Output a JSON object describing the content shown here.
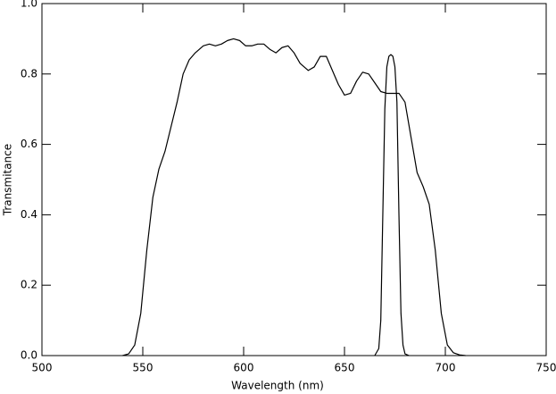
{
  "chart_data": {
    "type": "line",
    "x_label": "Wavelength (nm)",
    "y_label": "Transmitance",
    "xlim": [
      500,
      750
    ],
    "xticks": [
      500,
      550,
      600,
      650,
      700,
      750
    ],
    "ylim": [
      0,
      1
    ],
    "yticks": [
      {
        "value": 0,
        "label": "0.0"
      },
      {
        "value": 0.2,
        "label": "0.2"
      },
      {
        "value": 0.4,
        "label": "0.4"
      },
      {
        "value": 0.6,
        "label": "0.6"
      },
      {
        "value": 0.8,
        "label": "0.8"
      },
      {
        "value": 1,
        "label": "1.0"
      }
    ],
    "series": [
      {
        "color": "#000000",
        "x": [
          540,
          543,
          546,
          549,
          552,
          555,
          558,
          561,
          564,
          567,
          570,
          573,
          576,
          580,
          583,
          586,
          589,
          592,
          595,
          598,
          601,
          604,
          607,
          610,
          613,
          616,
          619,
          622,
          625,
          628,
          632,
          635,
          638,
          641,
          644,
          647,
          650,
          653,
          656,
          659,
          662,
          665,
          668,
          671,
          674,
          677,
          680,
          683,
          686,
          689,
          692,
          695,
          698,
          701,
          704,
          707,
          710
        ],
        "values": [
          0.0,
          0.005,
          0.03,
          0.12,
          0.3,
          0.45,
          0.53,
          0.58,
          0.65,
          0.72,
          0.8,
          0.84,
          0.86,
          0.88,
          0.885,
          0.88,
          0.885,
          0.895,
          0.9,
          0.895,
          0.88,
          0.88,
          0.885,
          0.885,
          0.87,
          0.86,
          0.875,
          0.88,
          0.86,
          0.83,
          0.81,
          0.82,
          0.85,
          0.85,
          0.81,
          0.77,
          0.74,
          0.745,
          0.78,
          0.805,
          0.8,
          0.775,
          0.75,
          0.745,
          0.745,
          0.745,
          0.72,
          0.62,
          0.52,
          0.48,
          0.43,
          0.3,
          0.12,
          0.03,
          0.008,
          0.002,
          0.0
        ]
      },
      {
        "color": "#000000",
        "x": [
          665,
          667,
          668,
          669,
          670,
          671,
          672,
          673,
          674,
          675,
          676,
          677,
          678,
          679,
          680,
          682
        ],
        "values": [
          0.0,
          0.02,
          0.1,
          0.4,
          0.7,
          0.82,
          0.85,
          0.855,
          0.85,
          0.82,
          0.72,
          0.4,
          0.12,
          0.03,
          0.005,
          0.0
        ]
      }
    ]
  }
}
